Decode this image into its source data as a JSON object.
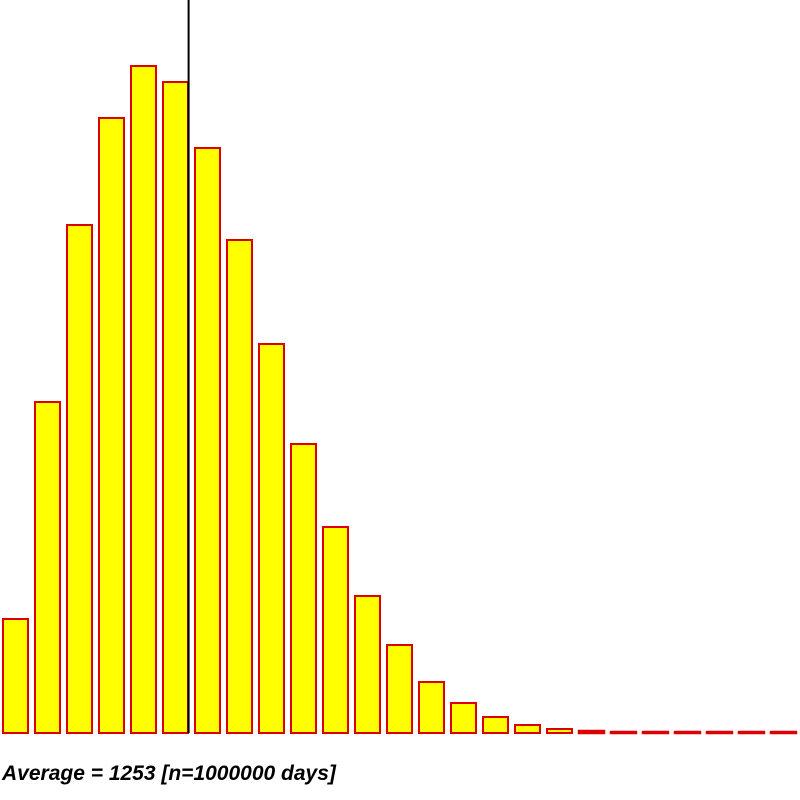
{
  "chart_data": {
    "type": "bar",
    "caption": "Average = 1253 [n=1000000 days]",
    "values": [
      114,
      331,
      508,
      615,
      667,
      651,
      585,
      493,
      389,
      289,
      206,
      137,
      88,
      51,
      30,
      16,
      8,
      4,
      2,
      1,
      1,
      1,
      1,
      1,
      1
    ],
    "average_marker_position": 5.8,
    "ylim": [
      0,
      700
    ],
    "grid": false,
    "legend": "none",
    "colors": {
      "bar_fill": "#ffff00",
      "bar_stroke": "#dd0000",
      "marker": "#000000"
    }
  }
}
